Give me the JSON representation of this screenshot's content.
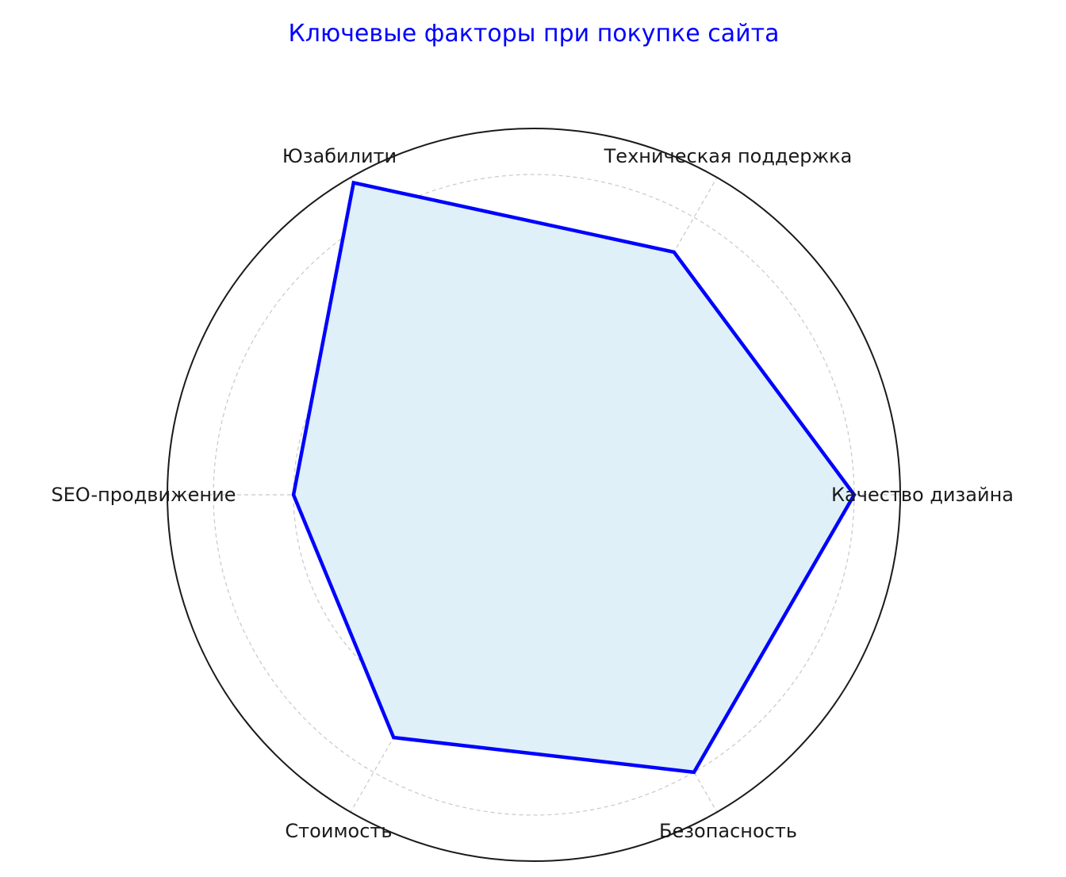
{
  "chart_data": {
    "type": "radar",
    "title": "Ключевые факторы при покупке сайта",
    "categories": [
      "Качество дизайна",
      "Техническая поддержка",
      "Юзабилити",
      "SEO-продвижение",
      "Стоимость",
      "Безопасность"
    ],
    "values": [
      8,
      7,
      9,
      6,
      7,
      8
    ],
    "rlim": [
      0,
      9.15
    ],
    "grid_rings": [
      2,
      4,
      6,
      8
    ],
    "grid": true,
    "radial_tick_labels_shown": false,
    "colors": {
      "title": "#0000ff",
      "line": "#0000ff",
      "fill": "#dff0f8",
      "grid": "#c8c8c8",
      "frame": "#1a1a1a",
      "label": "#1a1a1a"
    }
  }
}
